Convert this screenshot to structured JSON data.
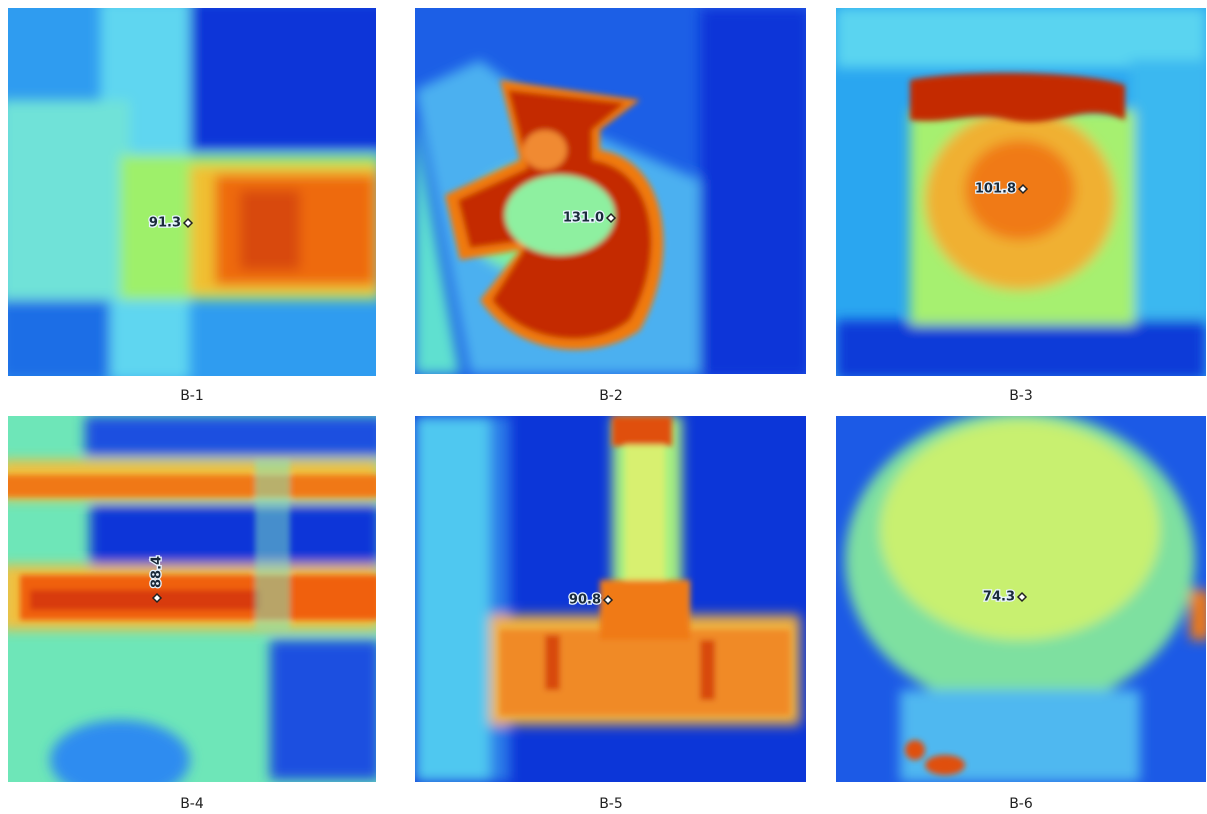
{
  "panels": [
    {
      "label": "B-1",
      "reading": "91.3"
    },
    {
      "label": "B-2",
      "reading": "131.0"
    },
    {
      "label": "B-3",
      "reading": "101.8"
    },
    {
      "label": "B-4",
      "reading": "88.4"
    },
    {
      "label": "B-5",
      "reading": "90.8"
    },
    {
      "label": "B-6",
      "reading": "74.3"
    }
  ]
}
